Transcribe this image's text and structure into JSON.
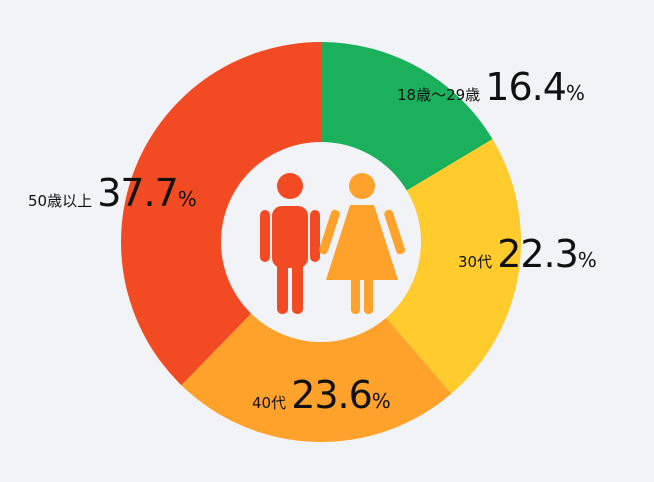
{
  "chart_data": {
    "type": "pie",
    "title": "",
    "categories": [
      "18歳〜29歳",
      "30代",
      "40代",
      "50歳以上"
    ],
    "values": [
      16.4,
      22.3,
      23.6,
      37.7
    ],
    "unit": "%",
    "colors": [
      "#1ab05c",
      "#ffcb2d",
      "#ffa22c",
      "#f24b24"
    ],
    "donut": true,
    "center_icons": [
      "man-icon",
      "woman-icon"
    ],
    "icon_colors": {
      "man": "#f24b24",
      "woman": "#ffa22c"
    }
  },
  "labels": [
    {
      "category": "18歳〜29歳",
      "value": "16.4",
      "unit": "%"
    },
    {
      "category": "30代",
      "value": "22.3",
      "unit": "%"
    },
    {
      "category": "40代",
      "value": "23.6",
      "unit": "%"
    },
    {
      "category": "50歳以上",
      "value": "37.7",
      "unit": "%"
    }
  ]
}
